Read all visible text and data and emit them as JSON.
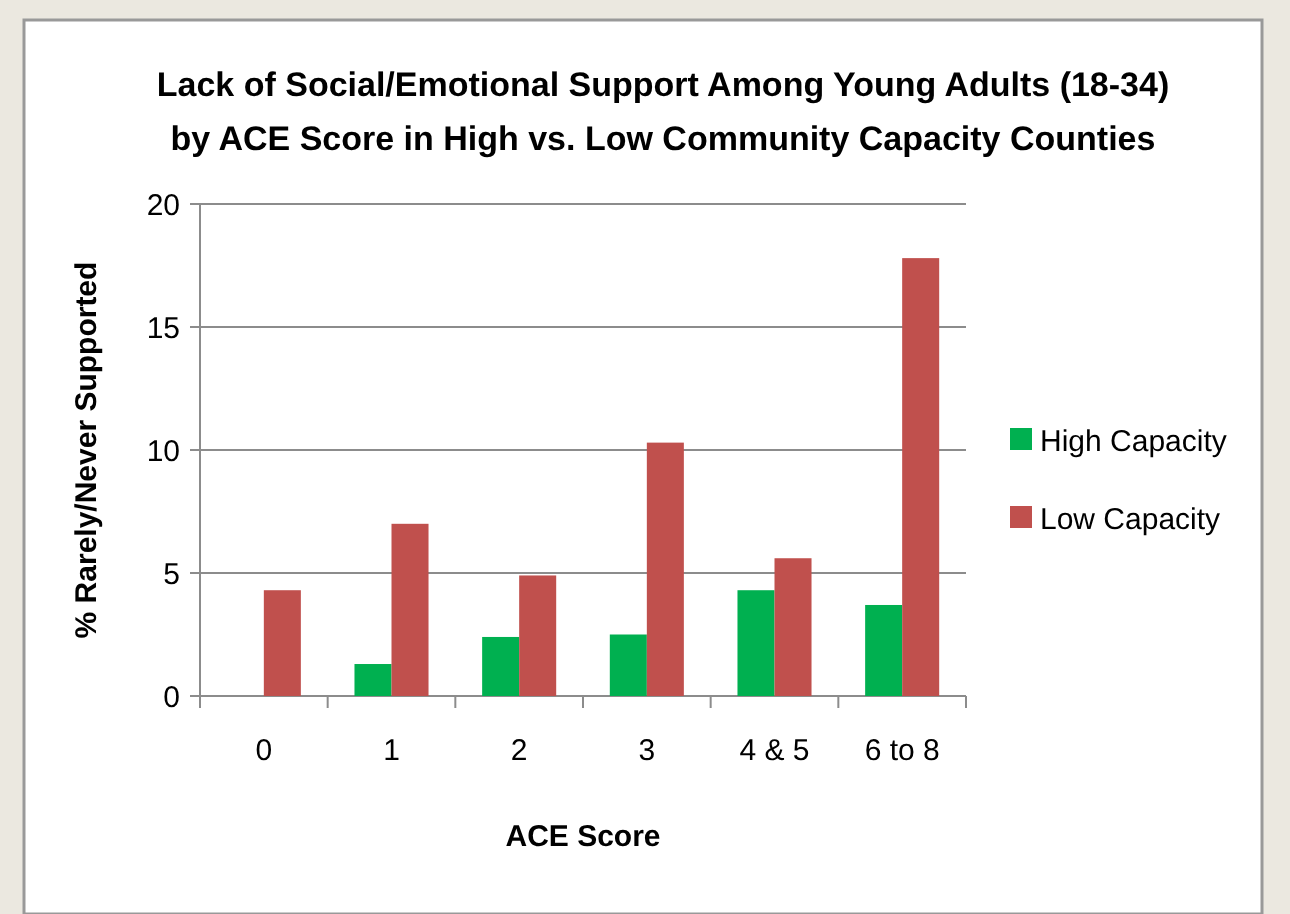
{
  "chart_data": {
    "type": "bar",
    "title": "Lack of Social/Emotional Support Among Young Adults (18-34)\nby ACE Score in High vs. Low Community Capacity Counties",
    "xlabel": "ACE Score",
    "ylabel": "% Rarely/Never Supported",
    "categories": [
      "0",
      "1",
      "2",
      "3",
      "4 & 5",
      "6 to 8"
    ],
    "series": [
      {
        "name": "High Capacity",
        "color": "#00b050",
        "values": [
          null,
          1.3,
          2.4,
          2.5,
          4.3,
          3.7
        ]
      },
      {
        "name": "Low Capacity",
        "color": "#c0504d",
        "values": [
          4.3,
          7.0,
          4.9,
          10.3,
          5.6,
          17.8
        ]
      }
    ],
    "ylim": [
      0,
      20
    ],
    "yticks": [
      0,
      5,
      10,
      15,
      20
    ],
    "grid": "y",
    "legend": "right"
  }
}
